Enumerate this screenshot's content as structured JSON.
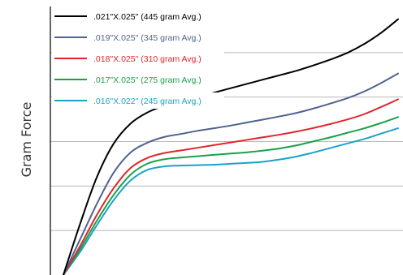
{
  "chart_data": {
    "type": "line",
    "title": "",
    "xlabel": "",
    "ylabel": "Gram Force",
    "xlim": [
      0,
      100
    ],
    "ylim": [
      0,
      6
    ],
    "grid": {
      "horizontal": true,
      "vertical": false
    },
    "legend_position": "top-left",
    "series": [
      {
        "name": ".021\"X.025\" (445 gram Avg.)",
        "color": "#000000",
        "x": [
          0,
          5,
          10,
          15,
          20,
          25,
          30,
          35,
          40,
          45,
          50,
          55,
          60,
          65,
          70,
          75,
          80,
          85,
          90,
          95,
          100
        ],
        "y": [
          0,
          1.15,
          2.2,
          2.95,
          3.4,
          3.65,
          3.8,
          3.9,
          4.0,
          4.1,
          4.2,
          4.3,
          4.4,
          4.5,
          4.6,
          4.72,
          4.85,
          5.0,
          5.2,
          5.45,
          5.75
        ]
      },
      {
        "name": ".019\"X.025\" (345 gram Avg.)",
        "color": "#4f6390",
        "x": [
          0,
          5,
          10,
          15,
          20,
          25,
          30,
          35,
          40,
          45,
          50,
          55,
          60,
          65,
          70,
          75,
          80,
          85,
          90,
          95,
          100
        ],
        "y": [
          0,
          0.8,
          1.6,
          2.3,
          2.75,
          2.97,
          3.1,
          3.17,
          3.24,
          3.3,
          3.36,
          3.43,
          3.5,
          3.57,
          3.65,
          3.75,
          3.86,
          3.98,
          4.13,
          4.32,
          4.53
        ]
      },
      {
        "name": ".018\"X.025\" (310 gram Avg.)",
        "color": "#e0262a",
        "x": [
          0,
          5,
          10,
          15,
          20,
          25,
          30,
          35,
          40,
          45,
          50,
          55,
          60,
          65,
          70,
          75,
          80,
          85,
          90,
          95,
          100
        ],
        "y": [
          0,
          0.65,
          1.35,
          1.95,
          2.4,
          2.63,
          2.74,
          2.8,
          2.86,
          2.92,
          2.98,
          3.04,
          3.1,
          3.16,
          3.23,
          3.31,
          3.4,
          3.5,
          3.62,
          3.78,
          3.95
        ]
      },
      {
        "name": ".017\"X.025\" (275 gram Avg.)",
        "color": "#1aa14a",
        "x": [
          0,
          5,
          10,
          15,
          20,
          25,
          30,
          35,
          40,
          45,
          50,
          55,
          60,
          65,
          70,
          75,
          80,
          85,
          90,
          95,
          100
        ],
        "y": [
          0,
          0.58,
          1.22,
          1.8,
          2.25,
          2.5,
          2.6,
          2.64,
          2.67,
          2.7,
          2.73,
          2.76,
          2.8,
          2.85,
          2.92,
          3.01,
          3.1,
          3.2,
          3.3,
          3.42,
          3.55
        ]
      },
      {
        "name": ".016\"X.022\" (245 gram Avg.)",
        "color": "#1aa3c8",
        "x": [
          0,
          5,
          10,
          15,
          20,
          25,
          30,
          35,
          40,
          45,
          50,
          55,
          60,
          65,
          70,
          75,
          80,
          85,
          90,
          95,
          100
        ],
        "y": [
          0,
          0.52,
          1.12,
          1.68,
          2.12,
          2.36,
          2.44,
          2.46,
          2.47,
          2.48,
          2.5,
          2.52,
          2.55,
          2.6,
          2.67,
          2.76,
          2.86,
          2.96,
          3.06,
          3.18,
          3.3
        ]
      }
    ]
  }
}
